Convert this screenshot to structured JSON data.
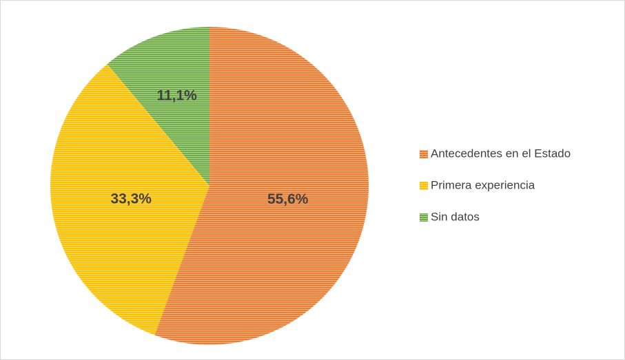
{
  "chart_data": {
    "type": "pie",
    "categories": [
      "Antecedentes en el Estado",
      "Primera experiencia",
      "Sin datos"
    ],
    "values": [
      55.6,
      33.3,
      11.1
    ],
    "value_labels": [
      "55,6%",
      "33,3%",
      "11,1%"
    ],
    "colors": [
      "#ED7D31",
      "#FFC000",
      "#70AD47"
    ],
    "legend": "right"
  }
}
